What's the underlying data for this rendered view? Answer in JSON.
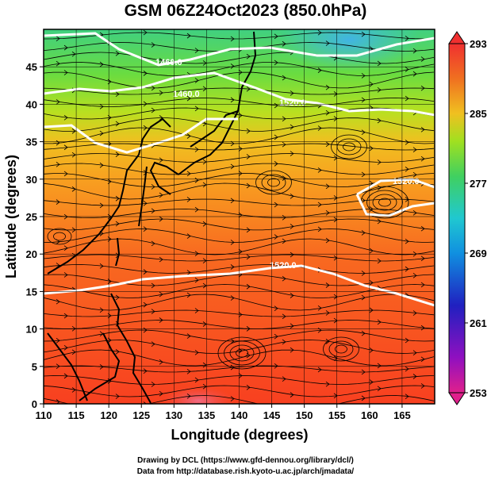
{
  "title": "GSM 06Z24Oct2023 (850.0hPa)",
  "axes": {
    "xlabel": "Longitude (degrees)",
    "ylabel": "Latitude (degrees)",
    "xlim": [
      110,
      170
    ],
    "ylim": [
      0,
      50
    ],
    "xticks": [
      "110",
      "115",
      "120",
      "125",
      "130",
      "135",
      "140",
      "145",
      "150",
      "155",
      "160",
      "165"
    ],
    "yticks": [
      "0",
      "5",
      "10",
      "15",
      "20",
      "25",
      "30",
      "35",
      "40",
      "45"
    ]
  },
  "colorbar": {
    "labels": [
      "293",
      "285",
      "277",
      "269",
      "261",
      "253"
    ],
    "range": [
      253,
      293
    ],
    "colors": [
      "#e0208c",
      "#9010c0",
      "#2020c0",
      "#1090e0",
      "#20c8d0",
      "#40d060",
      "#a0e020",
      "#f0c020",
      "#f07020",
      "#f03030"
    ]
  },
  "contour_labels": [
    "1460.0",
    "1460.0",
    "1520.0",
    "1520.0",
    "1520.0"
  ],
  "credits": {
    "line1": "Drawing by DCL (https://www.gfd-dennou.org/library/dcl/)",
    "line2": "Data from http://database.rish.kyoto-u.ac.jp/arch/jmadata/"
  }
}
